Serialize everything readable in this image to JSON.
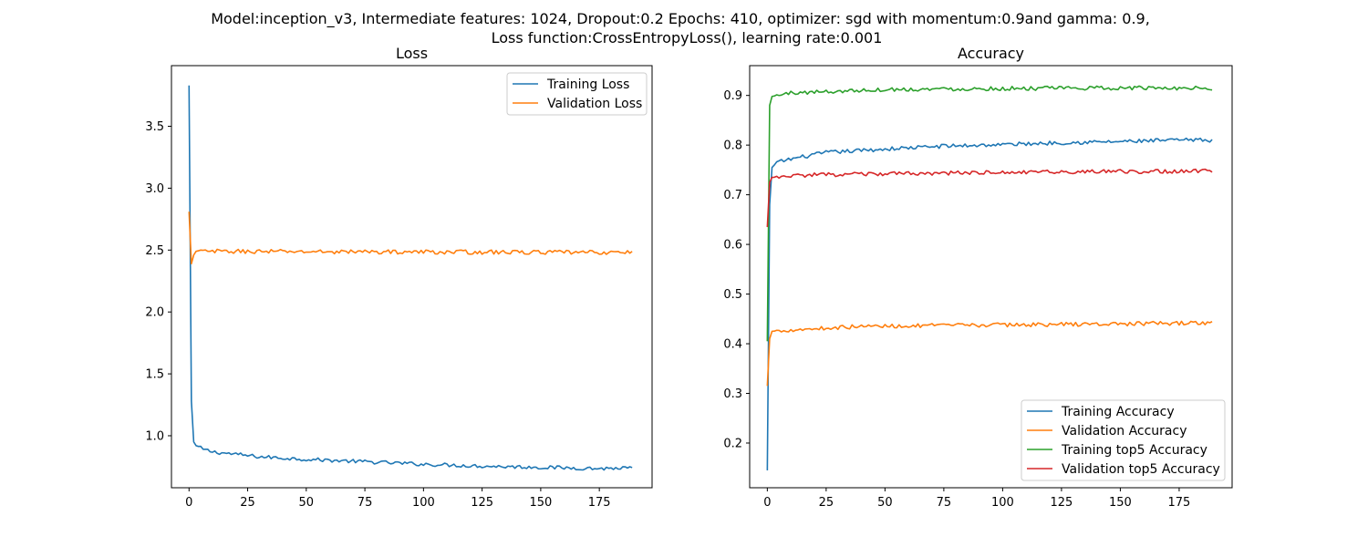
{
  "figure": {
    "suptitle_line1": "Model:inception_v3, Intermediate features: 1024, Dropout:0.2 Epochs: 410, optimizer: sgd with momentum:0.9and gamma: 0.9,",
    "suptitle_line2": "Loss function:CrossEntropyLoss(), learning rate:0.001"
  },
  "chart_data": [
    {
      "type": "line",
      "title": "Loss",
      "xlabel": "",
      "ylabel": "",
      "xlim": [
        -7.5,
        197.5
      ],
      "ylim": [
        0.58,
        3.99
      ],
      "xticks": [
        0,
        25,
        50,
        75,
        100,
        125,
        150,
        175
      ],
      "yticks": [
        1.0,
        1.5,
        2.0,
        2.5,
        3.0,
        3.5
      ],
      "ytick_labels": [
        "1.0",
        "1.5",
        "2.0",
        "2.5",
        "3.0",
        "3.5"
      ],
      "grid": false,
      "legend_position": "upper right",
      "series": [
        {
          "name": "Training Loss",
          "color": "#1f77b4",
          "shape": [
            [
              0,
              3.83
            ],
            [
              1,
              1.28
            ],
            [
              2,
              0.95
            ],
            [
              3,
              0.92
            ],
            [
              6,
              0.89
            ],
            [
              10,
              0.87
            ],
            [
              20,
              0.85
            ],
            [
              30,
              0.83
            ],
            [
              50,
              0.81
            ],
            [
              75,
              0.79
            ],
            [
              100,
              0.77
            ],
            [
              125,
              0.755
            ],
            [
              150,
              0.745
            ],
            [
              175,
              0.735
            ],
            [
              189,
              0.74
            ]
          ],
          "noise": 0.015
        },
        {
          "name": "Validation Loss",
          "color": "#ff7f0e",
          "shape": [
            [
              0,
              2.81
            ],
            [
              1,
              2.39
            ],
            [
              2,
              2.46
            ],
            [
              3,
              2.49
            ],
            [
              189,
              2.48
            ]
          ],
          "noise": 0.017
        }
      ]
    },
    {
      "type": "line",
      "title": "Accuracy",
      "xlabel": "",
      "ylabel": "",
      "xlim": [
        -7.5,
        197.5
      ],
      "ylim": [
        0.11,
        0.96
      ],
      "xticks": [
        0,
        25,
        50,
        75,
        100,
        125,
        150,
        175
      ],
      "yticks": [
        0.2,
        0.3,
        0.4,
        0.5,
        0.6,
        0.7,
        0.8,
        0.9
      ],
      "ytick_labels": [
        "0.2",
        "0.3",
        "0.4",
        "0.5",
        "0.6",
        "0.7",
        "0.8",
        "0.9"
      ],
      "grid": false,
      "legend_position": "lower right",
      "series": [
        {
          "name": "Training Accuracy",
          "color": "#1f77b4",
          "shape": [
            [
              0,
              0.145
            ],
            [
              1,
              0.68
            ],
            [
              2,
              0.755
            ],
            [
              4,
              0.765
            ],
            [
              10,
              0.772
            ],
            [
              25,
              0.785
            ],
            [
              50,
              0.792
            ],
            [
              75,
              0.798
            ],
            [
              100,
              0.801
            ],
            [
              125,
              0.805
            ],
            [
              150,
              0.807
            ],
            [
              175,
              0.81
            ],
            [
              189,
              0.81
            ]
          ],
          "noise": 0.004
        },
        {
          "name": "Validation Accuracy",
          "color": "#ff7f0e",
          "shape": [
            [
              0,
              0.315
            ],
            [
              1,
              0.41
            ],
            [
              2,
              0.425
            ],
            [
              10,
              0.428
            ],
            [
              40,
              0.435
            ],
            [
              100,
              0.438
            ],
            [
              150,
              0.44
            ],
            [
              189,
              0.442
            ]
          ],
          "noise": 0.004
        },
        {
          "name": "Training top5 Accuracy",
          "color": "#2ca02c",
          "shape": [
            [
              0,
              0.405
            ],
            [
              1,
              0.88
            ],
            [
              2,
              0.898
            ],
            [
              10,
              0.905
            ],
            [
              50,
              0.912
            ],
            [
              100,
              0.914
            ],
            [
              150,
              0.915
            ],
            [
              189,
              0.915
            ]
          ],
          "noise": 0.004
        },
        {
          "name": "Validation top5 Accuracy",
          "color": "#d62728",
          "shape": [
            [
              0,
              0.635
            ],
            [
              1,
              0.725
            ],
            [
              2,
              0.735
            ],
            [
              20,
              0.74
            ],
            [
              100,
              0.745
            ],
            [
              189,
              0.748
            ]
          ],
          "noise": 0.004
        }
      ]
    }
  ]
}
